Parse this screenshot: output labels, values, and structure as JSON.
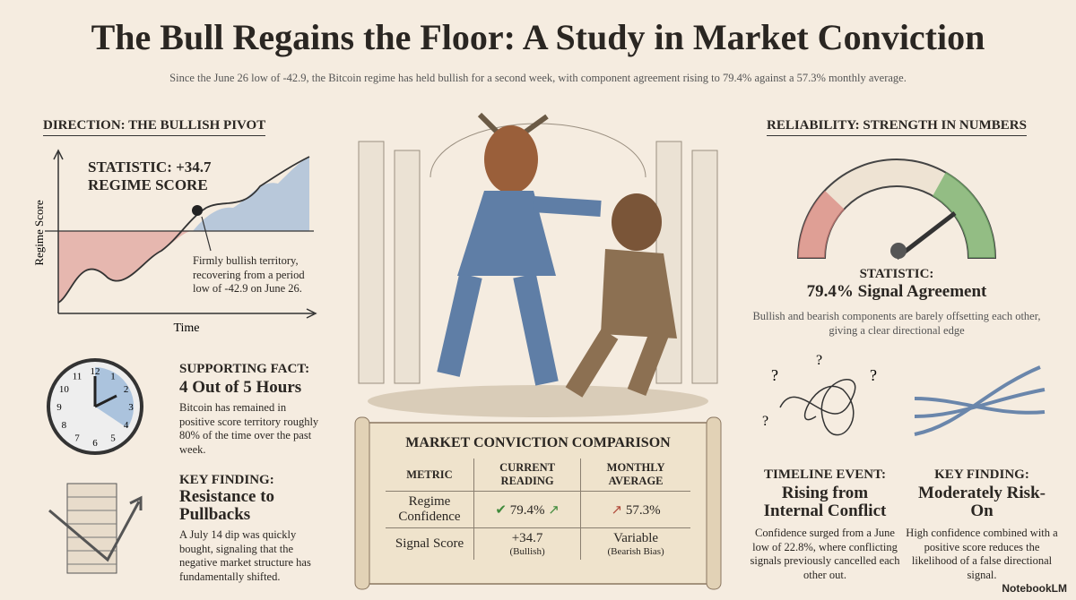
{
  "header": {
    "title": "The Bull Regains the Floor: A Study in Market Conviction",
    "subtitle": "Since the June 26 low of -42.9, the Bitcoin regime has held bullish for a second week, with component agreement rising to 79.4% against a 57.3% monthly average."
  },
  "direction": {
    "heading": "DIRECTION: THE BULLISH PIVOT",
    "stat_label": "STATISTIC: +34.7",
    "stat_name": "REGIME SCORE",
    "y_label": "Regime Score",
    "x_label": "Time",
    "note": "Firmly bullish territory, recovering from a period low of -42.9 on June 26."
  },
  "supporting_fact": {
    "label": "SUPPORTING FACT:",
    "title": "4 Out of 5 Hours",
    "text": "Bitcoin has remained in positive score territory roughly 80% of the time over the past week.",
    "clock_numerals": [
      "12",
      "1",
      "2",
      "3",
      "4",
      "5",
      "6",
      "7",
      "8",
      "9",
      "10",
      "11"
    ]
  },
  "key_finding_left": {
    "label": "KEY FINDING:",
    "title": "Resistance to Pullbacks",
    "text": "A July 14 dip was quickly bought, signaling that the negative market structure has fundamentally shifted."
  },
  "reliability": {
    "heading": "RELIABILITY: STRENGTH IN NUMBERS",
    "stat_label": "STATISTIC:",
    "stat_title": "79.4% Signal Agreement",
    "text": "Bullish and bearish components are barely offsetting each other, giving a clear directional edge"
  },
  "timeline_event": {
    "label": "TIMELINE EVENT:",
    "title": "Rising from Internal Conflict",
    "text": "Confidence surged from a June low of 22.8%, where conflicting signals previously cancelled each other out."
  },
  "key_finding_right": {
    "label": "KEY FINDING:",
    "title": "Moderately Risk-On",
    "text": "High confidence combined with a positive score reduces the likelihood of a false directional signal."
  },
  "table": {
    "title": "MARKET CONVICTION COMPARISON",
    "columns": [
      "METRIC",
      "CURRENT READING",
      "MONTHLY AVERAGE"
    ],
    "rows": [
      {
        "metric": "Regime Confidence",
        "current": "79.4%",
        "average": "57.3%"
      },
      {
        "metric": "Signal Score",
        "current": "+34.7",
        "current_note": "(Bullish)",
        "average": "Variable",
        "average_note": "(Bearish Bias)"
      }
    ]
  },
  "footer": {
    "brand": "NotebookLM"
  }
}
